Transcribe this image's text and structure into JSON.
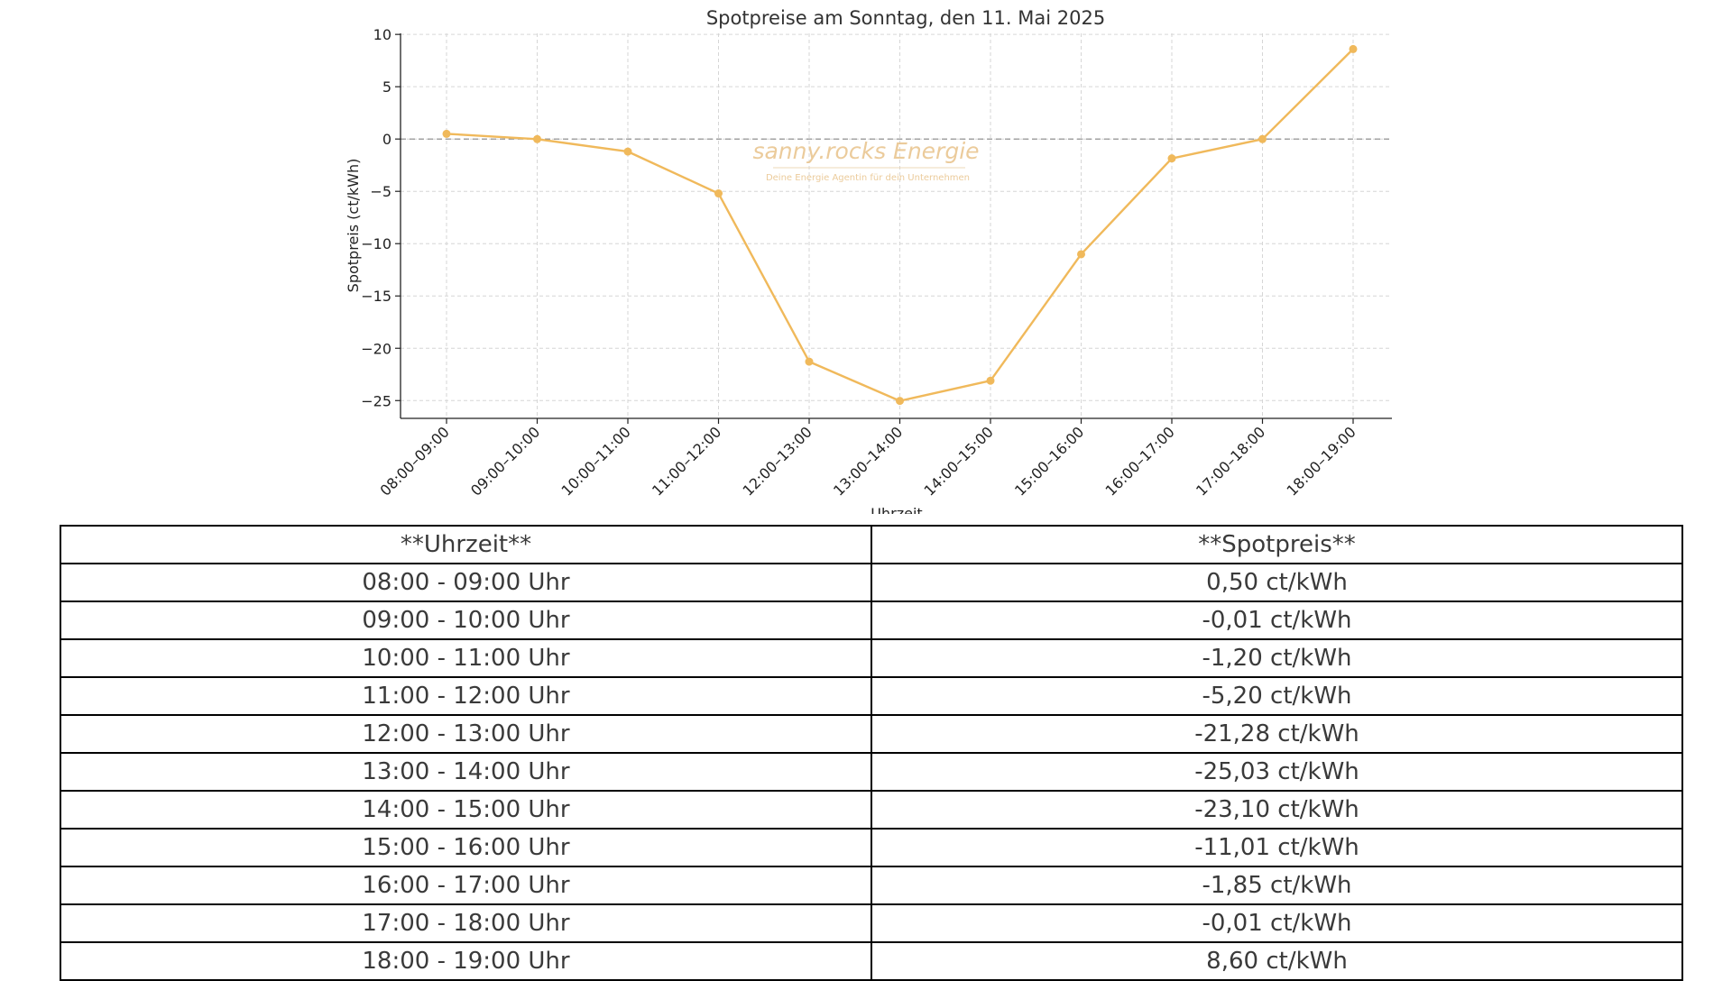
{
  "chart_data": {
    "type": "line",
    "title": "Spotpreise am Sonntag, den 11. Mai 2025",
    "xlabel": "Uhrzeit",
    "ylabel": "Spotpreis (ct/kWh)",
    "categories": [
      "08:00–09:00",
      "09:00–10:00",
      "10:00–11:00",
      "11:00–12:00",
      "12:00–13:00",
      "13:00–14:00",
      "14:00–15:00",
      "15:00–16:00",
      "16:00–17:00",
      "17:00–18:00",
      "18:00–19:00"
    ],
    "series": [
      {
        "values": [
          0.5,
          -0.01,
          -1.2,
          -5.2,
          -21.28,
          -25.03,
          -23.1,
          -11.01,
          -1.85,
          -0.01,
          8.6
        ]
      }
    ],
    "ylim": [
      -26.7,
      10.1
    ],
    "yticks": [
      10,
      5,
      0,
      -5,
      -10,
      -15,
      -20,
      -25
    ],
    "ytick_labels": [
      "10",
      "5",
      "0",
      "−5",
      "−10",
      "−15",
      "−20",
      "−25"
    ],
    "grid": true,
    "zero_line": true,
    "line_color": "#f0b95b",
    "watermark": {
      "brand": "sanny.rocks Energie",
      "tagline": "Deine Energie Agentin für dein Unternehmen",
      "color": "#e8c28a"
    }
  },
  "table": {
    "headers": [
      "**Uhrzeit**",
      "**Spotpreis**"
    ],
    "rows": [
      [
        "08:00 - 09:00 Uhr",
        "0,50 ct/kWh"
      ],
      [
        "09:00 - 10:00 Uhr",
        "-0,01 ct/kWh"
      ],
      [
        "10:00 - 11:00 Uhr",
        "-1,20 ct/kWh"
      ],
      [
        "11:00 - 12:00 Uhr",
        "-5,20 ct/kWh"
      ],
      [
        "12:00 - 13:00 Uhr",
        "-21,28 ct/kWh"
      ],
      [
        "13:00 - 14:00 Uhr",
        "-25,03 ct/kWh"
      ],
      [
        "14:00 - 15:00 Uhr",
        "-23,10 ct/kWh"
      ],
      [
        "15:00 - 16:00 Uhr",
        "-11,01 ct/kWh"
      ],
      [
        "16:00 - 17:00 Uhr",
        "-1,85 ct/kWh"
      ],
      [
        "17:00 - 18:00 Uhr",
        "-0,01 ct/kWh"
      ],
      [
        "18:00 - 19:00 Uhr",
        "8,60 ct/kWh"
      ]
    ]
  }
}
